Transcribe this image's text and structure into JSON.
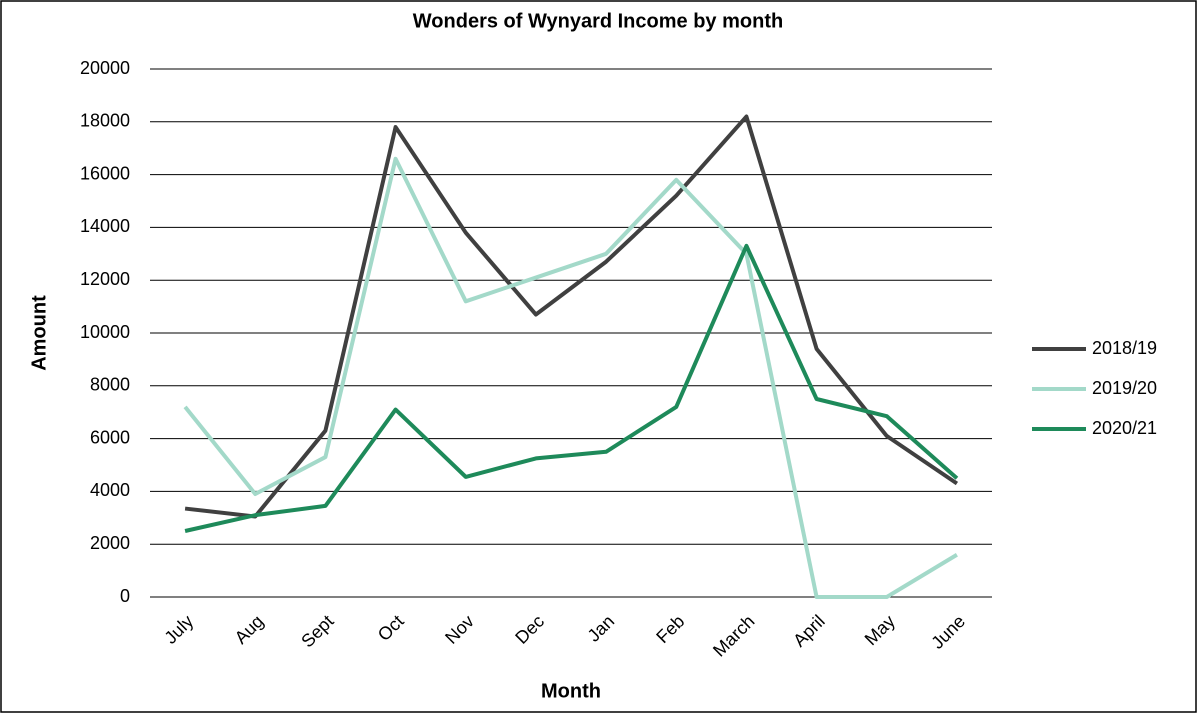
{
  "chart_data": {
    "type": "line",
    "title": "Wonders of Wynyard Income by month",
    "x_label": "Month",
    "y_label": "Amount",
    "categories": [
      "July",
      "Aug",
      "Sept",
      "Oct",
      "Nov",
      "Dec",
      "Jan",
      "Feb",
      "March",
      "April",
      "May",
      "June"
    ],
    "series": [
      {
        "name": "2018/19",
        "color": "#404040",
        "values": [
          3350,
          3050,
          6300,
          17800,
          13800,
          10700,
          12700,
          15200,
          18200,
          9400,
          6100,
          4300
        ]
      },
      {
        "name": "2019/20",
        "color": "#a3d9c9",
        "values": [
          7200,
          3900,
          5300,
          16600,
          11200,
          12100,
          13000,
          15800,
          13000,
          0,
          0,
          1600
        ]
      },
      {
        "name": "2020/21",
        "color": "#1e8a5a",
        "values": [
          2500,
          3100,
          3450,
          7100,
          4550,
          5250,
          5500,
          7200,
          13300,
          7500,
          6850,
          4500
        ]
      }
    ],
    "ylim": [
      0,
      20000
    ],
    "yticks": [
      0,
      2000,
      4000,
      6000,
      8000,
      10000,
      12000,
      14000,
      16000,
      18000,
      20000
    ],
    "grid": true,
    "legend": "right"
  }
}
